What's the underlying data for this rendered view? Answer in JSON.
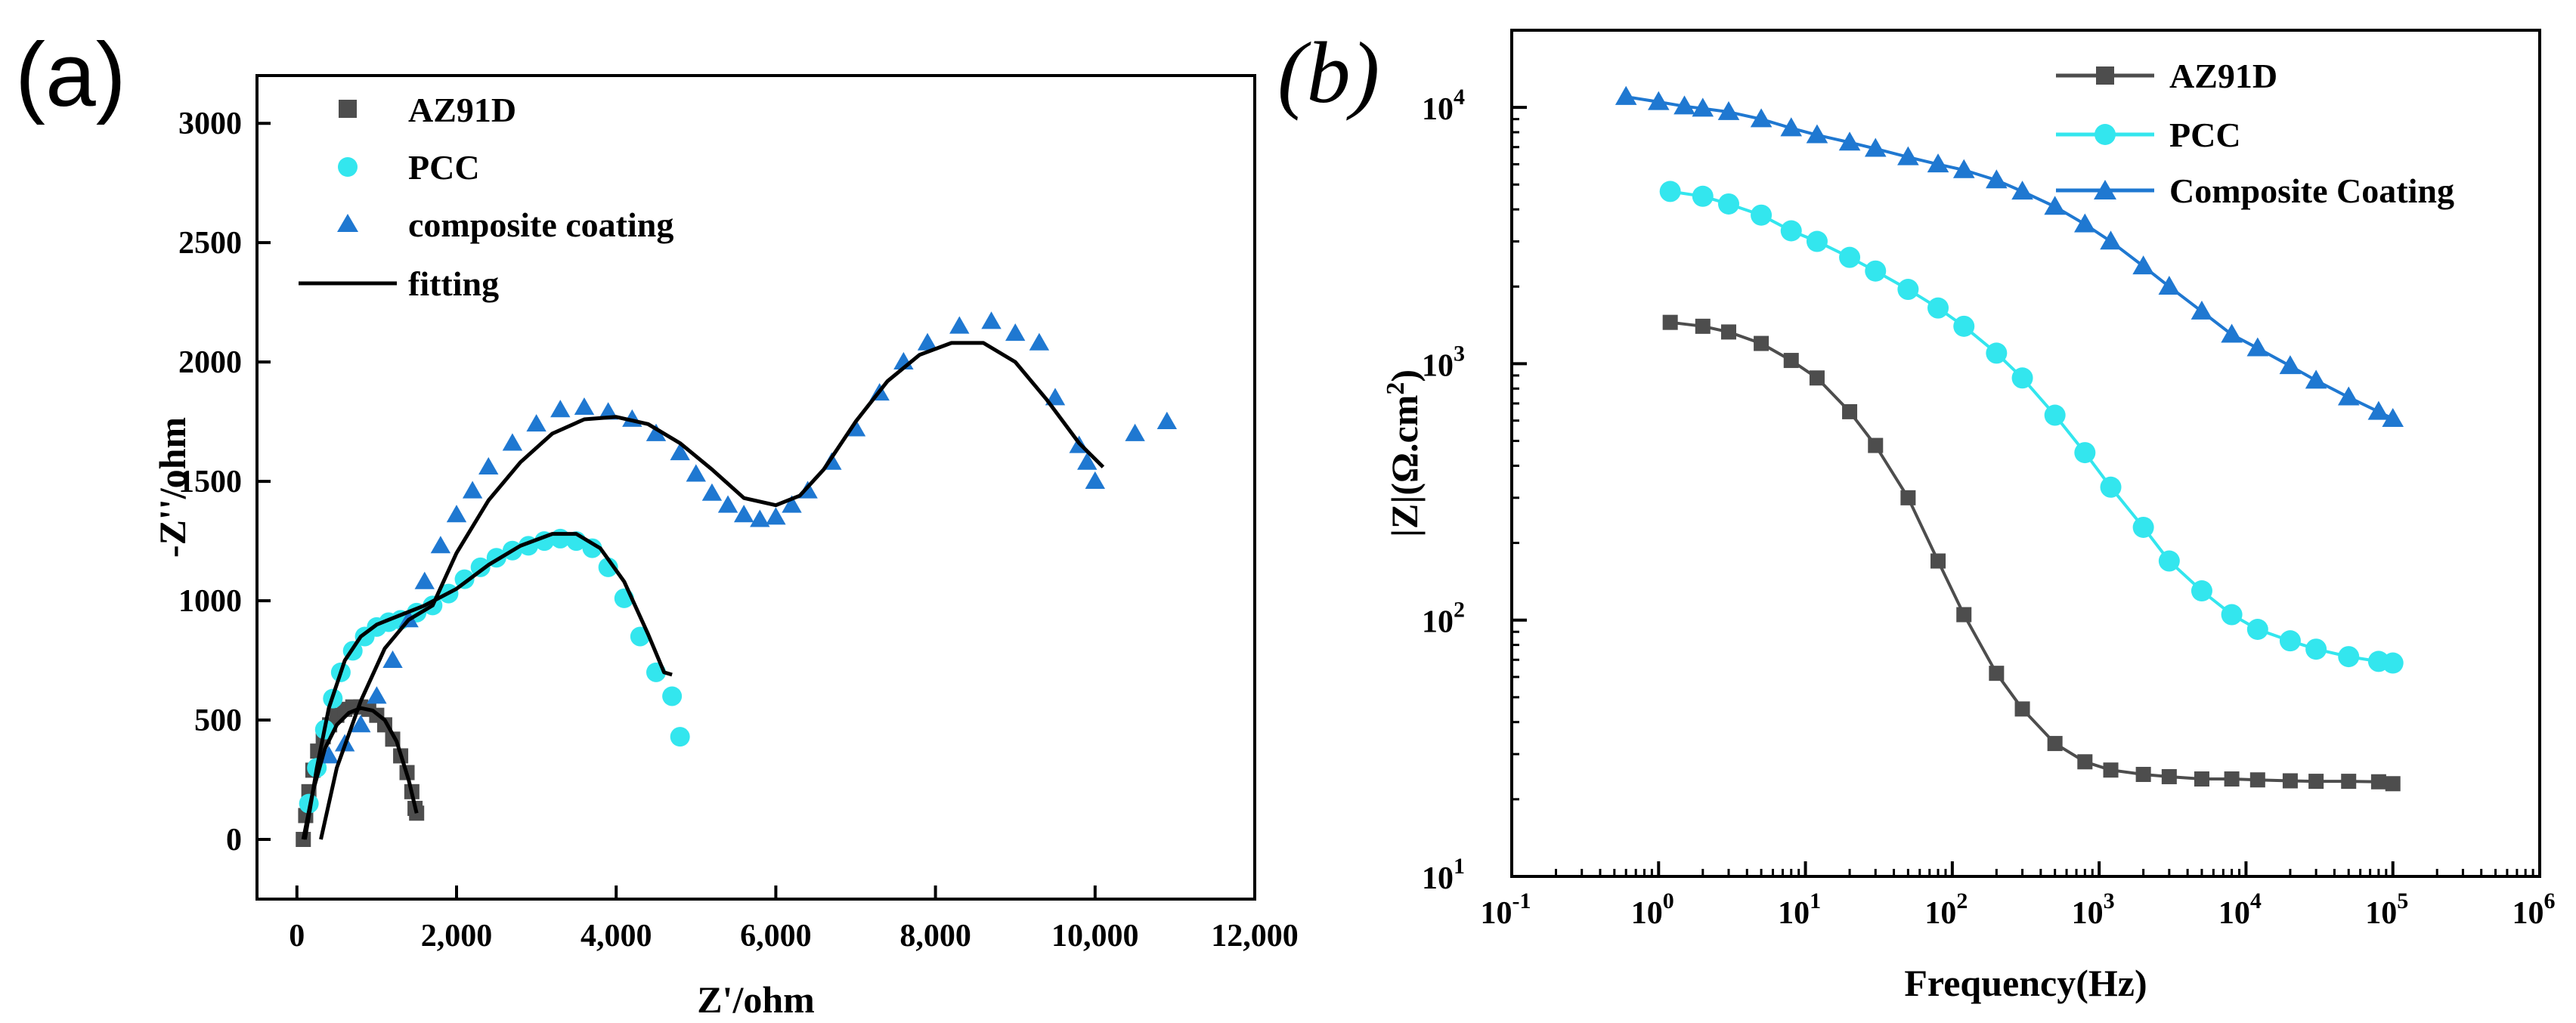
{
  "chart_data": [
    {
      "panel": "(a)",
      "type": "scatter",
      "xlabel": "Z'/ohm",
      "ylabel": "-Z''/ohm",
      "xlim": [
        -500,
        12000
      ],
      "ylim": [
        -250,
        3200
      ],
      "xticks": [
        0,
        2000,
        4000,
        6000,
        8000,
        10000,
        12000
      ],
      "xtick_labels": [
        "0",
        "2,000",
        "4,000",
        "6,000",
        "8,000",
        "10,000",
        "12,000"
      ],
      "yticks": [
        0,
        500,
        1000,
        1500,
        2000,
        2500,
        3000
      ],
      "ytick_labels": [
        "0",
        "500",
        "1000",
        "1500",
        "2000",
        "2500",
        "3000"
      ],
      "legend_position": "top-left",
      "colors": {
        "az91d": "#4d4d4d",
        "pcc": "#33e6ee",
        "composite": "#1f78d1",
        "fitting": "#000000"
      },
      "series": [
        {
          "name": "AZ91D",
          "marker": "square",
          "x": [
            80,
            110,
            150,
            200,
            260,
            330,
            410,
            500,
            600,
            700,
            800,
            900,
            1000,
            1100,
            1200,
            1300,
            1380,
            1440,
            1480,
            1500
          ],
          "y": [
            0,
            100,
            200,
            290,
            370,
            430,
            480,
            520,
            545,
            555,
            555,
            545,
            520,
            480,
            420,
            350,
            280,
            200,
            130,
            110
          ]
        },
        {
          "name": "PCC",
          "marker": "circle",
          "x": [
            150,
            250,
            350,
            450,
            550,
            700,
            850,
            1000,
            1150,
            1300,
            1500,
            1700,
            1900,
            2100,
            2300,
            2500,
            2700,
            2900,
            3100,
            3300,
            3500,
            3700,
            3900,
            4100,
            4300,
            4500,
            4700,
            4800
          ],
          "y": [
            150,
            300,
            460,
            590,
            700,
            790,
            850,
            890,
            910,
            920,
            950,
            980,
            1030,
            1090,
            1140,
            1180,
            1210,
            1230,
            1250,
            1260,
            1250,
            1220,
            1140,
            1010,
            850,
            700,
            600,
            430
          ]
        },
        {
          "name": "composite coating",
          "marker": "triangle",
          "x": [
            400,
            600,
            800,
            1000,
            1200,
            1400,
            1600,
            1800,
            2000,
            2200,
            2400,
            2700,
            3000,
            3300,
            3600,
            3900,
            4200,
            4500,
            4800,
            5000,
            5200,
            5400,
            5600,
            5800,
            6000,
            6200,
            6400,
            6700,
            7000,
            7300,
            7600,
            7900,
            8300,
            8700,
            9000,
            9300,
            9500,
            9800,
            9900,
            10000,
            10500,
            10900
          ],
          "y": [
            350,
            400,
            480,
            600,
            750,
            920,
            1080,
            1230,
            1360,
            1460,
            1560,
            1660,
            1740,
            1800,
            1810,
            1790,
            1760,
            1700,
            1620,
            1530,
            1450,
            1400,
            1360,
            1340,
            1350,
            1400,
            1460,
            1580,
            1720,
            1870,
            2000,
            2080,
            2150,
            2170,
            2120,
            2080,
            1850,
            1650,
            1580,
            1500,
            1700,
            1750
          ]
        }
      ],
      "fits": [
        {
          "name": "fitting",
          "x": [
            80,
            200,
            350,
            500,
            650,
            800,
            950,
            1100,
            1250,
            1400,
            1500
          ],
          "y": [
            0,
            200,
            380,
            480,
            530,
            550,
            540,
            500,
            410,
            250,
            110
          ]
        },
        {
          "name": "fitting",
          "x": [
            100,
            250,
            400,
            600,
            800,
            1000,
            1300,
            1600,
            2000,
            2400,
            2800,
            3200,
            3500,
            3800,
            4100,
            4400,
            4600,
            4700
          ],
          "y": [
            0,
            300,
            550,
            750,
            850,
            900,
            940,
            980,
            1050,
            1150,
            1230,
            1280,
            1280,
            1220,
            1080,
            860,
            700,
            690
          ]
        },
        {
          "name": "fitting",
          "x": [
            300,
            500,
            800,
            1100,
            1400,
            1700,
            2000,
            2400,
            2800,
            3200,
            3600,
            4000,
            4400,
            4800,
            5200,
            5600,
            6000,
            6300,
            6600,
            7000,
            7400,
            7800,
            8200,
            8600,
            9000,
            9400,
            9800,
            10100
          ],
          "y": [
            0,
            300,
            580,
            800,
            920,
            980,
            1200,
            1420,
            1580,
            1700,
            1760,
            1770,
            1740,
            1660,
            1550,
            1430,
            1400,
            1440,
            1550,
            1750,
            1920,
            2030,
            2080,
            2080,
            2000,
            1840,
            1660,
            1560
          ]
        }
      ]
    },
    {
      "panel": "(b)",
      "type": "line",
      "xscale": "log",
      "yscale": "log",
      "xlabel": "Frequency(Hz)",
      "ylabel": "|Z|(Ω.cm2)",
      "ylabel_prefix": "|Z|(Ω.cm",
      "ylabel_sup": "2",
      "ylabel_suffix": ")",
      "xlim": [
        0.1,
        1000000
      ],
      "ylim": [
        10,
        20000
      ],
      "xticks": [
        0.1,
        1,
        10,
        100,
        1000,
        10000,
        100000,
        1000000
      ],
      "xtick_bases": [
        "10",
        "10",
        "10",
        "10",
        "10",
        "10",
        "10",
        "10"
      ],
      "xtick_exps": [
        "-1",
        "0",
        "1",
        "2",
        "3",
        "4",
        "5",
        "6"
      ],
      "yticks": [
        10,
        100,
        1000,
        10000
      ],
      "ytick_bases": [
        "10",
        "10",
        "10",
        "10"
      ],
      "ytick_exps": [
        "1",
        "2",
        "3",
        "4"
      ],
      "legend_position": "top-right",
      "series": [
        {
          "name": "AZ91D",
          "marker": "square",
          "color": "#4d4d4d",
          "x": [
            1.2,
            2,
            3,
            5,
            8,
            12,
            20,
            30,
            50,
            80,
            120,
            200,
            300,
            500,
            800,
            1200,
            2000,
            3000,
            5000,
            8000,
            12000,
            20000,
            30000,
            50000,
            80000,
            100000
          ],
          "y": [
            1450,
            1400,
            1330,
            1200,
            1030,
            880,
            650,
            480,
            300,
            170,
            105,
            62,
            45,
            33,
            28,
            26,
            25,
            24.5,
            24,
            24,
            23.8,
            23.6,
            23.5,
            23.5,
            23.4,
            23
          ]
        },
        {
          "name": "PCC",
          "marker": "circle",
          "color": "#33e6ee",
          "x": [
            1.2,
            2,
            3,
            5,
            8,
            12,
            20,
            30,
            50,
            80,
            120,
            200,
            300,
            500,
            800,
            1200,
            2000,
            3000,
            5000,
            8000,
            12000,
            20000,
            30000,
            50000,
            80000,
            100000
          ],
          "y": [
            4700,
            4500,
            4200,
            3800,
            3300,
            3000,
            2600,
            2300,
            1950,
            1650,
            1400,
            1100,
            880,
            630,
            450,
            330,
            230,
            170,
            130,
            105,
            92,
            83,
            77,
            72,
            69,
            68
          ]
        },
        {
          "name": "Composite Coating",
          "marker": "triangle",
          "color": "#1f78d1",
          "x": [
            0.6,
            1,
            1.5,
            2,
            3,
            5,
            8,
            12,
            20,
            30,
            50,
            80,
            120,
            200,
            300,
            500,
            800,
            1200,
            2000,
            3000,
            5000,
            8000,
            12000,
            20000,
            30000,
            50000,
            80000,
            100000
          ],
          "y": [
            11000,
            10500,
            10100,
            9900,
            9600,
            9000,
            8300,
            7800,
            7300,
            6900,
            6400,
            6000,
            5700,
            5200,
            4700,
            4100,
            3500,
            3000,
            2400,
            2000,
            1600,
            1300,
            1150,
            980,
            860,
            740,
            650,
            610
          ]
        }
      ]
    }
  ]
}
